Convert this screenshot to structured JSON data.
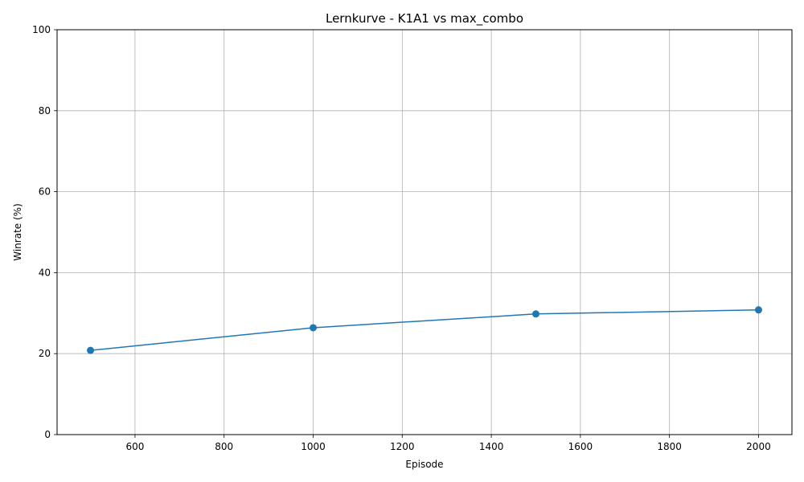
{
  "chart_data": {
    "type": "line",
    "title": "Lernkurve - K1A1 vs max_combo",
    "xlabel": "Episode",
    "ylabel": "Winrate (%)",
    "xlim": [
      425,
      2075
    ],
    "ylim": [
      0,
      100
    ],
    "xticks": [
      600,
      800,
      1000,
      1200,
      1400,
      1600,
      1800,
      2000
    ],
    "yticks": [
      0,
      20,
      40,
      60,
      80,
      100
    ],
    "grid": true,
    "series": [
      {
        "x": [
          500,
          1000,
          1500,
          2000
        ],
        "values": [
          20.8,
          26.4,
          29.8,
          30.8
        ],
        "color": "#1f77b4",
        "marker": "circle"
      }
    ]
  }
}
